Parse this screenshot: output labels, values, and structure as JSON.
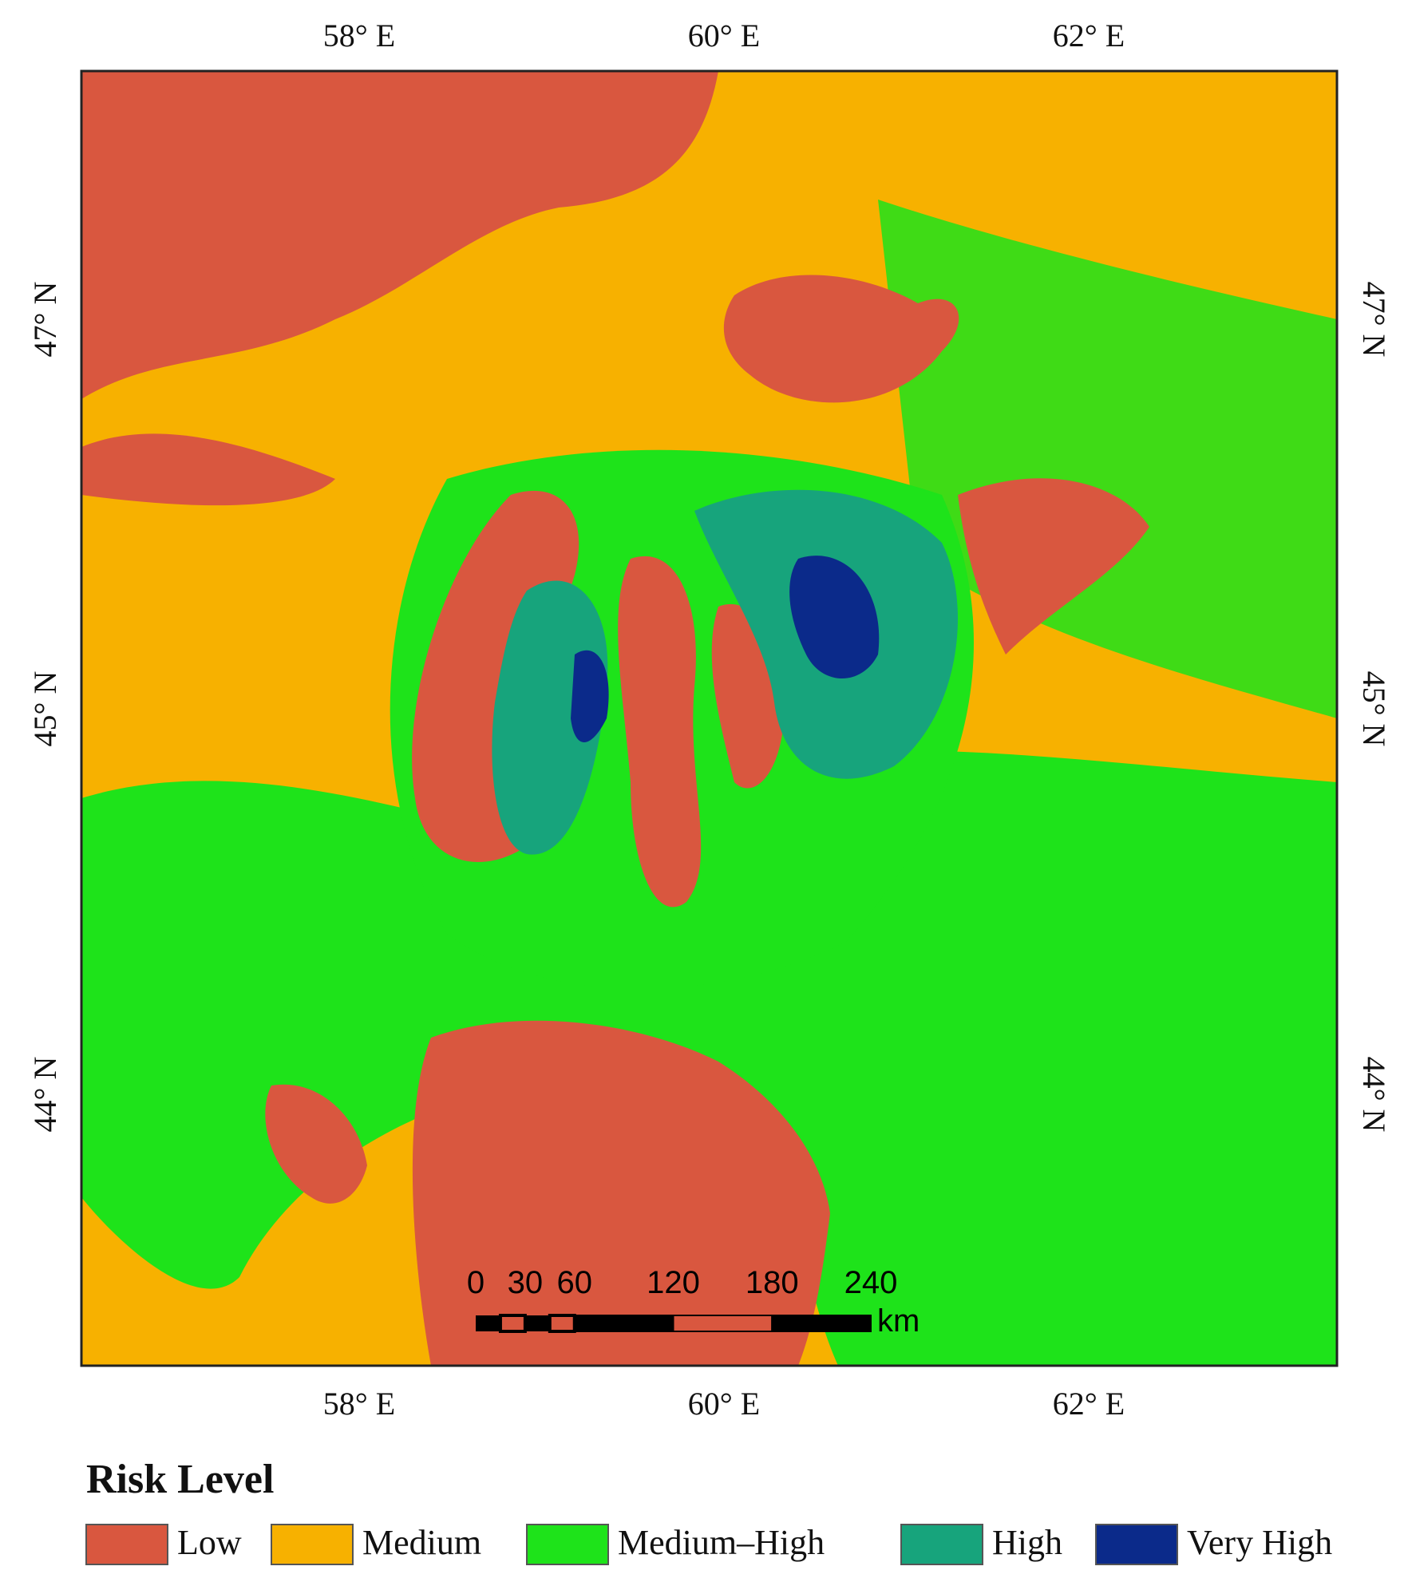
{
  "map": {
    "x_labels": [
      "58° E",
      "60° E",
      "62° E"
    ],
    "y_labels": [
      "47° N",
      "45° N",
      "44° N"
    ],
    "scale_bar": {
      "ticks": [
        0,
        30,
        60,
        120,
        180,
        240
      ],
      "unit": "km"
    },
    "legend": {
      "title": "Risk Level",
      "items": [
        {
          "label": "Low",
          "color": "#d9573f"
        },
        {
          "label": "Medium",
          "color": "#f7b100"
        },
        {
          "label": "Medium–High",
          "color": "#1ee31a"
        },
        {
          "label": "High",
          "color": "#17a47c"
        },
        {
          "label": "Very High",
          "color": "#0b2a8a"
        }
      ]
    }
  }
}
